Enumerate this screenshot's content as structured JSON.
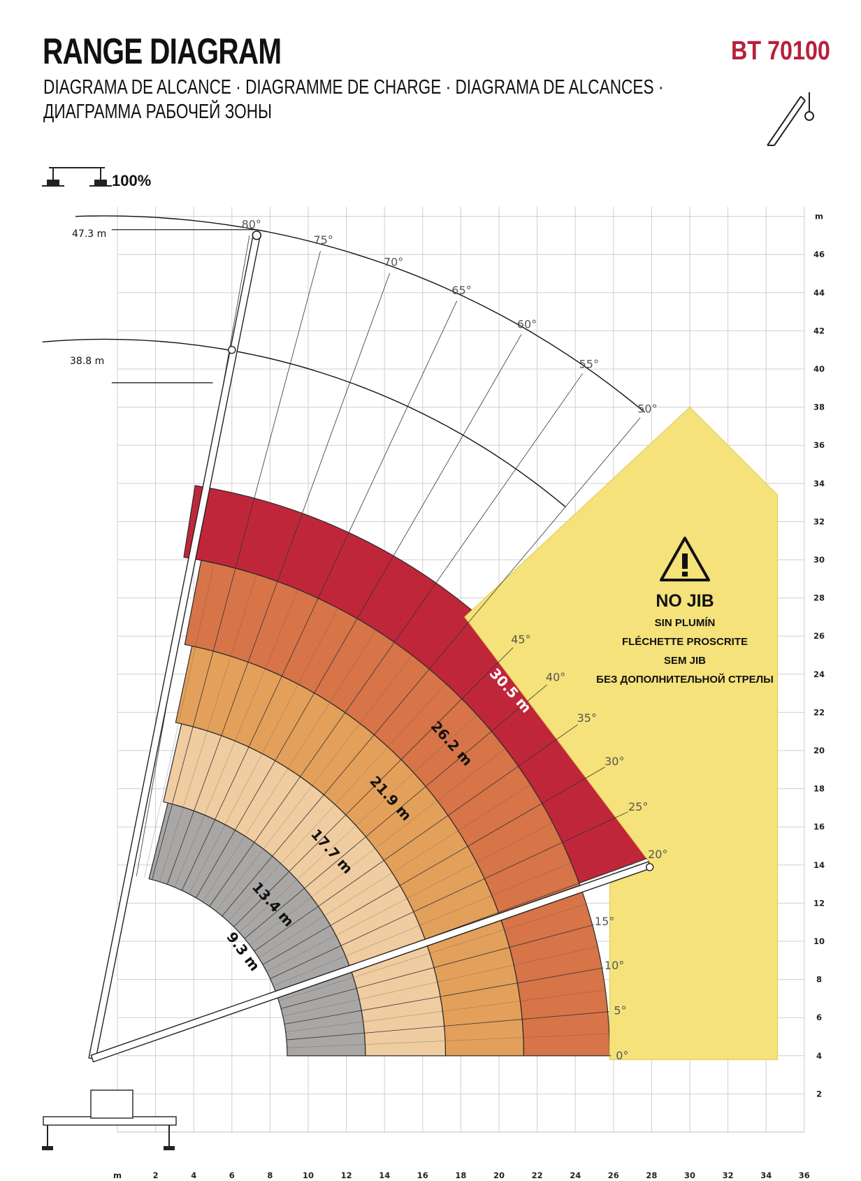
{
  "header": {
    "title": "RANGE DIAGRAM",
    "model": "BT 70100",
    "subtitle_line1": "DIAGRAMA DE ALCANCE · DIAGRAMME DE CHARGE · DIAGRAMA DE ALCANCES ·",
    "subtitle_line2": "ДИАГРАММА РАБОЧЕЙ ЗОНЫ",
    "outrigger_percent": "100%"
  },
  "axes": {
    "x_unit": "m",
    "y_unit": "m",
    "x_ticks": [
      "2",
      "4",
      "6",
      "8",
      "10",
      "12",
      "14",
      "16",
      "18",
      "20",
      "22",
      "24",
      "26",
      "28",
      "30",
      "32",
      "34",
      "36"
    ],
    "y_ticks": [
      "2",
      "4",
      "6",
      "8",
      "10",
      "12",
      "14",
      "16",
      "18",
      "20",
      "22",
      "24",
      "26",
      "28",
      "30",
      "32",
      "34",
      "36",
      "38",
      "40",
      "42",
      "44",
      "46"
    ]
  },
  "heights": {
    "top_label": "47.3 m",
    "mid_label": "38.8 m"
  },
  "angles": [
    "0°",
    "5°",
    "10°",
    "15°",
    "20°",
    "25°",
    "30°",
    "35°",
    "40°",
    "45°",
    "50°",
    "55°",
    "60°",
    "65°",
    "70°",
    "75°",
    "80°"
  ],
  "radius_bands": [
    {
      "label": "9.3 m",
      "color": "#ffffff"
    },
    {
      "label": "13.4 m",
      "color": "#a9a7a5"
    },
    {
      "label": "17.7 m",
      "color": "#f0cca1"
    },
    {
      "label": "21.9 m",
      "color": "#e3a05a"
    },
    {
      "label": "26.2 m",
      "color": "#d77448"
    },
    {
      "label": "30.5 m",
      "color": "#c0263a"
    }
  ],
  "no_jib": {
    "main": "NO JIB",
    "line1": "SIN PLUMÍN",
    "line2": "FLÉCHETTE PROSCRITE",
    "line3": "SEM JIB",
    "line4": "БЕЗ ДОПОЛНИТЕЛЬНОЙ СТРЕЛЫ",
    "color": "#f5e27a"
  },
  "icons": [
    "crane-boom-icon",
    "outrigger-icon",
    "warning-triangle-icon"
  ]
}
